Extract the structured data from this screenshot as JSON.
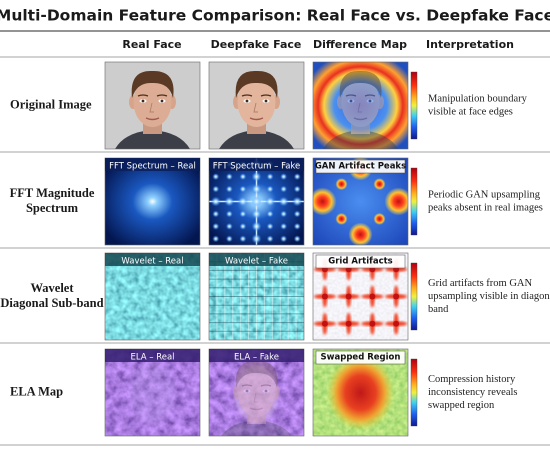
{
  "title": "Multi-Domain Feature Comparison: Real Face vs. Deepfake Face",
  "columns": [
    "Real Face",
    "Deepfake Face",
    "Difference Map",
    "Interpretation"
  ],
  "rows": [
    {
      "label": [
        "Original Image"
      ],
      "interpretation": [
        "Manipulation boundary",
        "visible at face edges"
      ]
    },
    {
      "label": [
        "FFT Magnitude",
        "Spectrum"
      ],
      "panels": [
        "FFT Spectrum – Real",
        "FFT Spectrum – Fake",
        "GAN Artifact Peaks"
      ],
      "interpretation": [
        "Periodic GAN upsampling",
        "peaks absent in real images"
      ]
    },
    {
      "label": [
        "Wavelet",
        "Diagonal Sub-band"
      ],
      "panels": [
        "Wavelet – Real",
        "Wavelet – Fake",
        "Grid Artifacts"
      ],
      "interpretation": [
        "Grid artifacts from GAN",
        "upsampling visible in diagonal",
        "band"
      ]
    },
    {
      "label": [
        "ELA Map"
      ],
      "panels": [
        "ELA – Real",
        "ELA – Fake",
        "Swapped Region"
      ],
      "interpretation": [
        "Compression history",
        "inconsistency reveals",
        "swapped region"
      ]
    }
  ]
}
